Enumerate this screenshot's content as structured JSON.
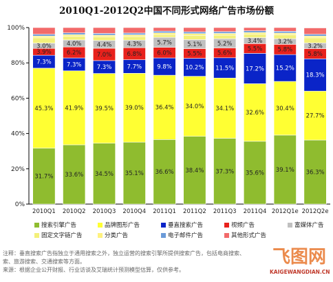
{
  "chart_data": {
    "type": "bar",
    "stacked": true,
    "title": "2010Q1-2012Q2中国不同形式网络广告市场份额",
    "categories": [
      "2010Q1",
      "2010Q2",
      "2010Q3",
      "2010Q4",
      "2011Q1",
      "2011Q2",
      "2011Q3",
      "2011Q4",
      "2012Q1e",
      "2012Q2e"
    ],
    "ylim": [
      0,
      100
    ],
    "yticks": [
      "0%",
      "20%",
      "40%",
      "60%",
      "80%",
      "100%"
    ],
    "grid": false,
    "legend_position": "bottom",
    "series": [
      {
        "name": "搜索引擎广告",
        "color": "#8fbc2f",
        "values": [
          31.7,
          33.6,
          34.5,
          35.1,
          36.6,
          38.4,
          37.3,
          35.6,
          39.1,
          36.3
        ],
        "labels": [
          "31.7%",
          "33.6%",
          "34.5%",
          "35.1%",
          "36.6%",
          "38.4%",
          "37.3%",
          "35.6%",
          "39.1%",
          "36.3%"
        ]
      },
      {
        "name": "品牌图形广告",
        "color": "#ffff33",
        "values": [
          45.3,
          41.9,
          39.5,
          39.0,
          36.4,
          34.0,
          34.1,
          32.6,
          30.4,
          27.7
        ],
        "labels": [
          "45.3%",
          "41.9%",
          "39.5%",
          "39.0%",
          "36.4%",
          "34.0%",
          "34.1%",
          "32.6%",
          "30.4%",
          "27.7%"
        ]
      },
      {
        "name": "垂直搜索广告",
        "color": "#0a24c8",
        "values": [
          7.3,
          7.3,
          7.3,
          7.7,
          9.8,
          10.2,
          11.5,
          17.2,
          15.2,
          18.3
        ],
        "labels": [
          "7.3%",
          "7.3%",
          "7.3%",
          "7.7%",
          "9.8%",
          "10.2%",
          "11.5%",
          "17.2%",
          "15.2%",
          "18.3%"
        ]
      },
      {
        "name": "视频广告",
        "color": "#e8211c",
        "values": [
          3.9,
          6.2,
          7.0,
          6.8,
          6.0,
          5.5,
          5.6,
          5.5,
          5.8,
          5.8
        ],
        "labels": [
          "3.9%",
          "6.2%",
          "7.0%",
          "6.8%",
          "6.0%",
          "5.5%",
          "5.6%",
          "5.5%",
          "5.8%",
          "5.8%"
        ]
      },
      {
        "name": "富媒体广告",
        "color": "#c0c0c0",
        "values": [
          3.0,
          4.0,
          4.4,
          4.3,
          5.7,
          5.1,
          5.2,
          3.4,
          3.2,
          3.2
        ],
        "labels": [
          "3.0%",
          "4.0%",
          "4.4%",
          "4.3%",
          "5.7%",
          "5.1%",
          "5.2%",
          "3.4%",
          "3.2%",
          "3.2%"
        ]
      },
      {
        "name": "固定文字链广告",
        "color": "#f3f07a",
        "values": [
          3.0,
          2.0,
          2.0,
          2.0,
          1.5,
          2.4,
          2.0,
          1.9,
          2.2,
          2.9
        ],
        "labels": []
      },
      {
        "name": "分类广告",
        "color": "#fff27f",
        "values": [
          1.0,
          1.0,
          1.0,
          1.0,
          1.0,
          1.0,
          1.0,
          1.0,
          1.0,
          1.0
        ],
        "labels": []
      },
      {
        "name": "电子邮件广告",
        "color": "#6b9bd8",
        "values": [
          1.0,
          1.0,
          1.0,
          1.0,
          1.0,
          1.0,
          1.0,
          1.0,
          1.0,
          1.0
        ],
        "labels": []
      },
      {
        "name": "其他形式广告",
        "color": "#f26a6a",
        "values": [
          3.8,
          3.0,
          3.3,
          3.1,
          2.0,
          2.4,
          2.3,
          1.8,
          2.1,
          3.6
        ],
        "labels": []
      }
    ]
  },
  "notes": {
    "line1": "注释：垂直搜索广告指独立于通用搜索之外，独立运营的搜索引擎所提供搜索广告，包括电商搜索、",
    "line2": "索、旅游搜索、交通搜索等方面。",
    "line3": "来源：根据企业公开财报、行业访谈及艾瑞统计预测模型估算，仅供参考。"
  },
  "watermark": {
    "glyph": "飞图网",
    "url": "KAIGEWANGDIAN.CN"
  }
}
